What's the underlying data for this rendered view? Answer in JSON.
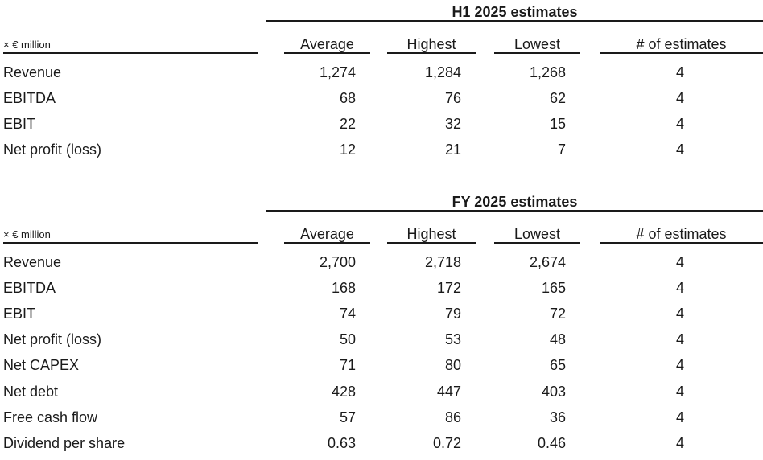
{
  "sections": [
    {
      "title": "H1 2025 estimates",
      "unit": "× € million",
      "headers": [
        "Average",
        "Highest",
        "Lowest",
        "# of estimates"
      ],
      "rows": [
        {
          "label": "Revenue",
          "average": "1,274",
          "highest": "1,284",
          "lowest": "1,268",
          "count": "4"
        },
        {
          "label": "EBITDA",
          "average": "68",
          "highest": "76",
          "lowest": "62",
          "count": "4"
        },
        {
          "label": "EBIT",
          "average": "22",
          "highest": "32",
          "lowest": "15",
          "count": "4"
        },
        {
          "label": "Net profit (loss)",
          "average": "12",
          "highest": "21",
          "lowest": "7",
          "count": "4"
        }
      ]
    },
    {
      "title": "FY 2025 estimates",
      "unit": "× € million",
      "headers": [
        "Average",
        "Highest",
        "Lowest",
        "# of estimates"
      ],
      "rows": [
        {
          "label": "Revenue",
          "average": "2,700",
          "highest": "2,718",
          "lowest": "2,674",
          "count": "4"
        },
        {
          "label": "EBITDA",
          "average": "168",
          "highest": "172",
          "lowest": "165",
          "count": "4"
        },
        {
          "label": "EBIT",
          "average": "74",
          "highest": "79",
          "lowest": "72",
          "count": "4"
        },
        {
          "label": "Net profit (loss)",
          "average": "50",
          "highest": "53",
          "lowest": "48",
          "count": "4"
        },
        {
          "label": "Net CAPEX",
          "average": "71",
          "highest": "80",
          "lowest": "65",
          "count": "4"
        },
        {
          "label": "Net debt",
          "average": "428",
          "highest": "447",
          "lowest": "403",
          "count": "4"
        },
        {
          "label": "Free cash flow",
          "average": "57",
          "highest": "86",
          "lowest": "36",
          "count": "4"
        },
        {
          "label": "Dividend per share",
          "average": "0.63",
          "highest": "0.72",
          "lowest": "0.46",
          "count": "4"
        }
      ]
    }
  ]
}
